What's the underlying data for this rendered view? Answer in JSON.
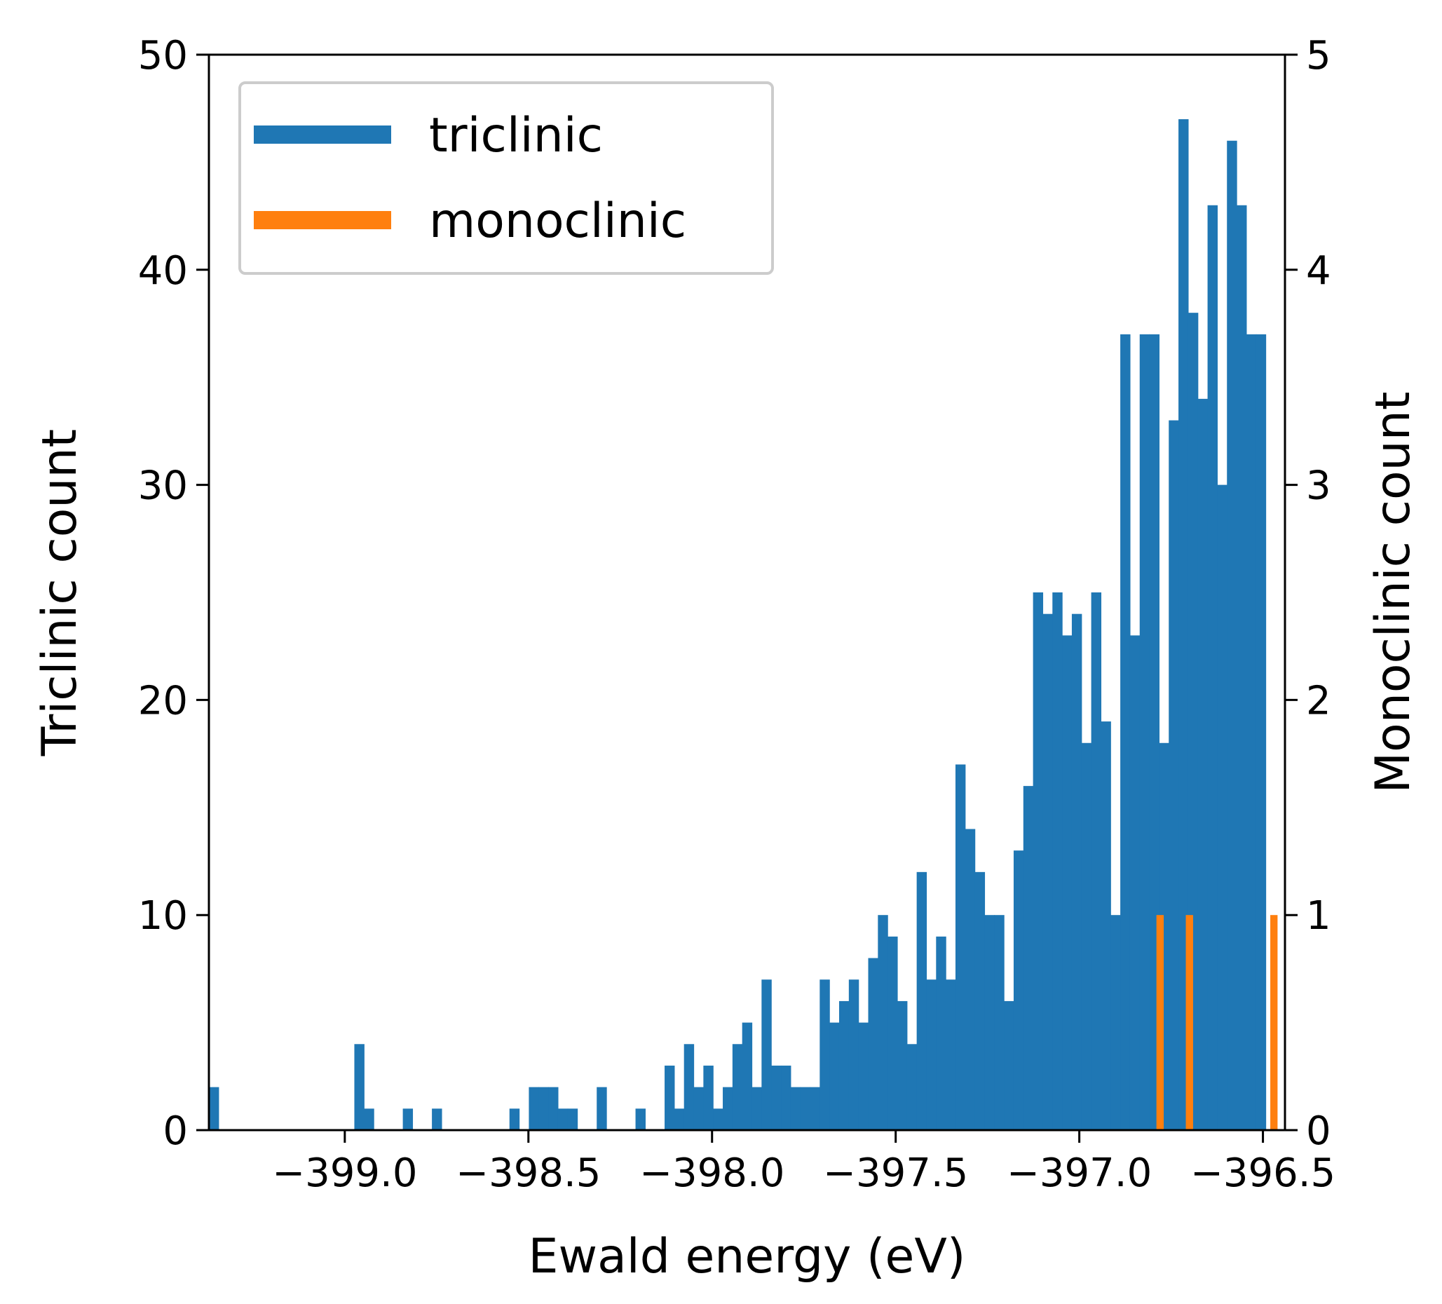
{
  "chart_data": {
    "type": "bar",
    "title": "",
    "xlabel": "Ewald energy (eV)",
    "ylabel": "Triclinic count",
    "ylabel_right": "Monoclinic count",
    "xlim": [
      -399.37,
      -396.44
    ],
    "ylim": [
      0,
      50
    ],
    "ylim_right": [
      0,
      5
    ],
    "x_ticks": [
      -399.0,
      -398.5,
      -398.0,
      -397.5,
      -397.0,
      -396.5
    ],
    "x_tick_labels": [
      "−399.0",
      "−398.5",
      "−398.0",
      "−397.5",
      "−397.0",
      "−396.5"
    ],
    "y_ticks": [
      0,
      10,
      20,
      30,
      40,
      50
    ],
    "y_tick_labels": [
      "0",
      "10",
      "20",
      "30",
      "40",
      "50"
    ],
    "y_ticks_right": [
      0,
      1,
      2,
      3,
      4,
      5
    ],
    "y_tick_labels_right": [
      "0",
      "1",
      "2",
      "3",
      "4",
      "5"
    ],
    "grid": false,
    "legend": {
      "position": "top-left",
      "entries": [
        "triclinic",
        "monoclinic"
      ]
    },
    "bin_start": -399.37,
    "bin_width": 0.0264,
    "series": [
      {
        "name": "triclinic",
        "axis": "left",
        "color": "#1f77b4",
        "values": [
          2,
          0,
          0,
          0,
          0,
          0,
          0,
          0,
          0,
          0,
          0,
          0,
          0,
          0,
          0,
          4,
          1,
          0,
          0,
          0,
          1,
          0,
          0,
          1,
          0,
          0,
          0,
          0,
          0,
          0,
          0,
          1,
          0,
          2,
          2,
          2,
          1,
          1,
          0,
          0,
          2,
          0,
          0,
          0,
          1,
          0,
          0,
          3,
          1,
          4,
          2,
          3,
          1,
          2,
          4,
          5,
          2,
          7,
          3,
          3,
          2,
          2,
          2,
          7,
          5,
          6,
          7,
          5,
          8,
          10,
          9,
          6,
          4,
          12,
          7,
          9,
          7,
          17,
          14,
          12,
          10,
          10,
          6,
          13,
          16,
          25,
          24,
          25,
          23,
          24,
          18,
          25,
          19,
          10,
          37,
          23,
          37,
          37,
          18,
          33,
          47,
          38,
          34,
          43,
          30,
          46,
          43,
          37,
          37
        ]
      },
      {
        "name": "monoclinic",
        "axis": "right",
        "color": "#ff7f0e",
        "bars": [
          {
            "x": -396.79,
            "value": 1
          },
          {
            "x": -396.71,
            "value": 1
          },
          {
            "x": -396.48,
            "value": 1
          }
        ]
      }
    ]
  }
}
